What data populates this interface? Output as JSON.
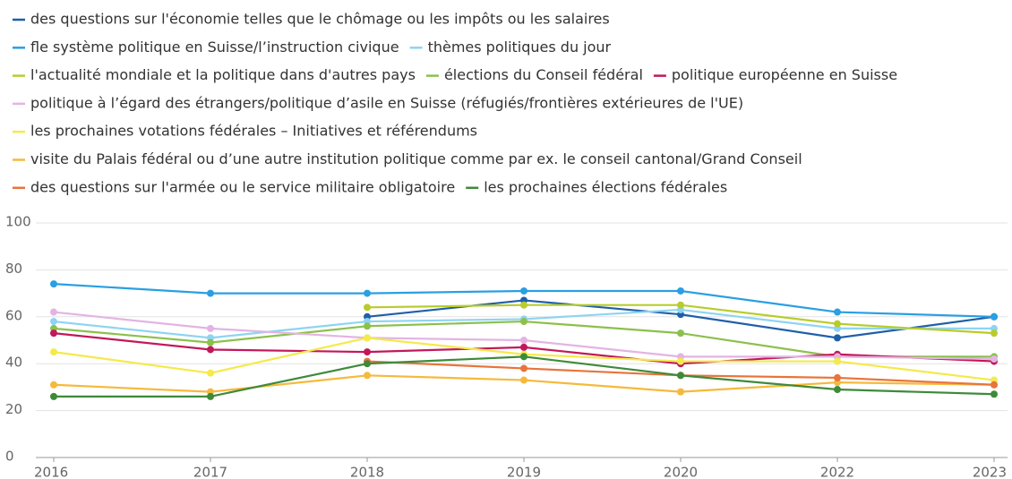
{
  "chart_data": {
    "type": "line",
    "categories": [
      "2016",
      "2017",
      "2018",
      "2019",
      "2020",
      "2022",
      "2023"
    ],
    "ylim": [
      0,
      100
    ],
    "yticks": [
      0,
      20,
      40,
      60,
      80,
      100
    ],
    "grid": true,
    "series": [
      {
        "name": "des questions sur l'économie telles que le chômage ou les impôts ou les salaires",
        "color": "#1f5fa8",
        "values": [
          null,
          null,
          60,
          67,
          61,
          51,
          60
        ]
      },
      {
        "name": "fle système politique en Suisse/l’instruction civique",
        "color": "#2a9fe2",
        "values": [
          74,
          70,
          70,
          71,
          71,
          62,
          60
        ]
      },
      {
        "name": "thèmes politiques du jour",
        "color": "#8ed4f2",
        "values": [
          58,
          51,
          58,
          59,
          63,
          55,
          55
        ]
      },
      {
        "name": "l'actualité mondiale et la politique dans d'autres pays",
        "color": "#b8cc2c",
        "values": [
          null,
          null,
          64,
          65,
          65,
          57,
          53
        ]
      },
      {
        "name": "élections du Conseil fédéral",
        "color": "#8cc04c",
        "values": [
          55,
          49,
          56,
          58,
          53,
          43,
          43
        ]
      },
      {
        "name": "politique européenne en Suisse",
        "color": "#c2185b",
        "values": [
          53,
          46,
          45,
          47,
          40,
          44,
          41
        ]
      },
      {
        "name": "politique à l’égard des étrangers/politique d’asile en Suisse (réfugiés/frontières extérieures de l'UE)",
        "color": "#e3b4e3",
        "values": [
          62,
          55,
          51,
          50,
          43,
          43,
          42
        ]
      },
      {
        "name": "les prochaines votations fédérales – Initiatives et référendums",
        "color": "#f4ea4a",
        "values": [
          45,
          36,
          51,
          44,
          41,
          41,
          33
        ]
      },
      {
        "name": "visite du Palais fédéral ou d’une autre institution politique comme par ex. le conseil cantonal/Grand Conseil",
        "color": "#f6b93b",
        "values": [
          31,
          28,
          35,
          33,
          28,
          32,
          31
        ]
      },
      {
        "name": "des questions sur l'armée ou le service militaire obligatoire",
        "color": "#e8743b",
        "values": [
          null,
          null,
          41,
          38,
          35,
          34,
          31
        ]
      },
      {
        "name": "les prochaines élections fédérales",
        "color": "#3e8a3a",
        "values": [
          26,
          26,
          40,
          43,
          35,
          29,
          27
        ]
      }
    ]
  }
}
